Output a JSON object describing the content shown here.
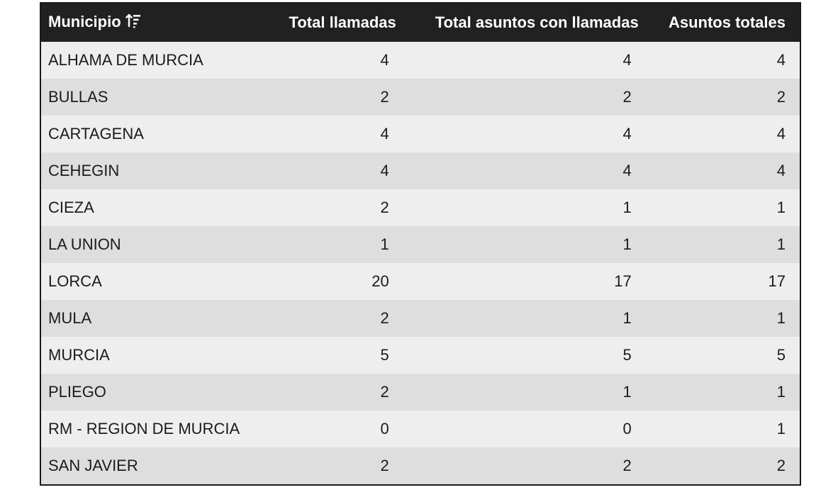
{
  "table": {
    "headers": {
      "municipio": "Municipio",
      "total_llamadas": "Total llamadas",
      "total_asuntos_con_llamadas": "Total asuntos con llamadas",
      "asuntos_totales": "Asuntos totales"
    },
    "sort_icon": "sort-ascending-icon",
    "rows": [
      {
        "municipio": "ALHAMA DE MURCIA",
        "total_llamadas": "4",
        "total_asuntos_con_llamadas": "4",
        "asuntos_totales": "4"
      },
      {
        "municipio": "BULLAS",
        "total_llamadas": "2",
        "total_asuntos_con_llamadas": "2",
        "asuntos_totales": "2"
      },
      {
        "municipio": "CARTAGENA",
        "total_llamadas": "4",
        "total_asuntos_con_llamadas": "4",
        "asuntos_totales": "4"
      },
      {
        "municipio": "CEHEGIN",
        "total_llamadas": "4",
        "total_asuntos_con_llamadas": "4",
        "asuntos_totales": "4"
      },
      {
        "municipio": "CIEZA",
        "total_llamadas": "2",
        "total_asuntos_con_llamadas": "1",
        "asuntos_totales": "1"
      },
      {
        "municipio": "LA UNION",
        "total_llamadas": "1",
        "total_asuntos_con_llamadas": "1",
        "asuntos_totales": "1"
      },
      {
        "municipio": "LORCA",
        "total_llamadas": "20",
        "total_asuntos_con_llamadas": "17",
        "asuntos_totales": "17"
      },
      {
        "municipio": "MULA",
        "total_llamadas": "2",
        "total_asuntos_con_llamadas": "1",
        "asuntos_totales": "1"
      },
      {
        "municipio": "MURCIA",
        "total_llamadas": "5",
        "total_asuntos_con_llamadas": "5",
        "asuntos_totales": "5"
      },
      {
        "municipio": "PLIEGO",
        "total_llamadas": "2",
        "total_asuntos_con_llamadas": "1",
        "asuntos_totales": "1"
      },
      {
        "municipio": "RM - REGION DE MURCIA",
        "total_llamadas": "0",
        "total_asuntos_con_llamadas": "0",
        "asuntos_totales": "1"
      },
      {
        "municipio": "SAN JAVIER",
        "total_llamadas": "2",
        "total_asuntos_con_llamadas": "2",
        "asuntos_totales": "2"
      }
    ]
  }
}
